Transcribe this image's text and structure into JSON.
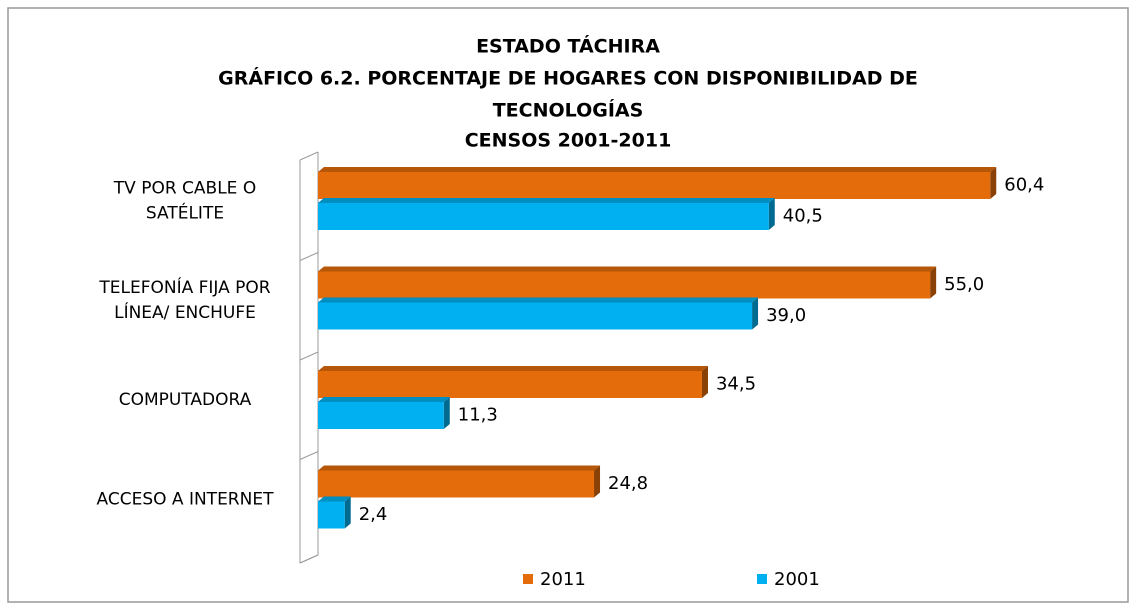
{
  "chart_data": {
    "type": "bar",
    "orientation": "horizontal",
    "title": [
      "ESTADO TÁCHIRA",
      "GRÁFICO 6.2. PORCENTAJE DE HOGARES CON DISPONIBILIDAD  DE",
      "TECNOLOGÍAS",
      "CENSOS 2001-2011"
    ],
    "categories": [
      [
        "TV POR CABLE O",
        "SATÉLITE"
      ],
      [
        "TELEFONÍA FIJA POR",
        "LÍNEA/ ENCHUFE"
      ],
      [
        "COMPUTADORA"
      ],
      [
        "ACCESO A  INTERNET"
      ]
    ],
    "series": [
      {
        "name": "2011",
        "color": "#e46c0a",
        "values": [
          60.4,
          55.0,
          34.5,
          24.8
        ],
        "value_labels": [
          "60,4",
          "55,0",
          "34,5",
          "24,8"
        ]
      },
      {
        "name": "2001",
        "color": "#00b0f0",
        "values": [
          40.5,
          39.0,
          11.3,
          2.4
        ],
        "value_labels": [
          "40,5",
          "39,0",
          "11,3",
          "2,4"
        ]
      }
    ],
    "xlim": [
      0,
      70
    ],
    "legend": "bottom"
  }
}
